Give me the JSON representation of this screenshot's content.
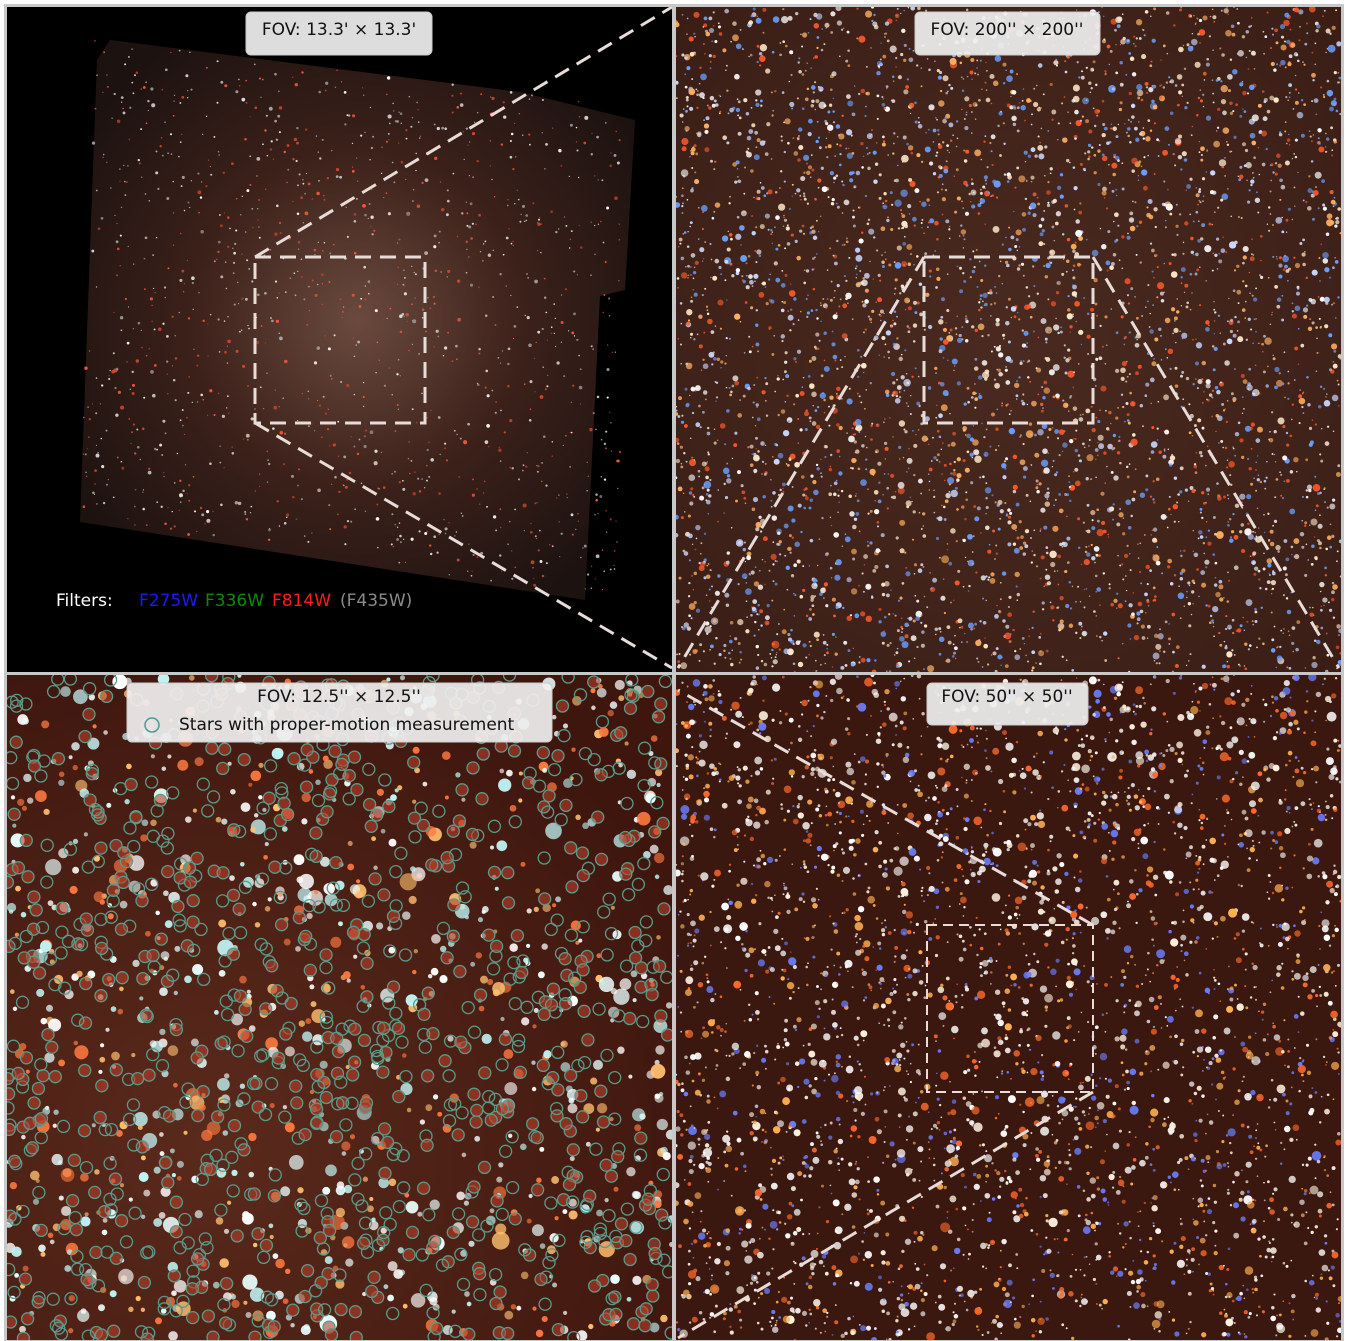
{
  "panels": [
    {
      "label": "FOV: 13.3' × 13.3'"
    },
    {
      "label": "FOV: 200'' × 200''"
    },
    {
      "label": "FOV: 12.5'' × 12.5''",
      "legend": "Stars with proper-motion measurement"
    },
    {
      "label": "FOV: 50'' × 50''"
    }
  ],
  "filters": {
    "title": "Filters:",
    "items": [
      "F275W",
      "F336W",
      "F814W",
      "(F435W)"
    ]
  }
}
